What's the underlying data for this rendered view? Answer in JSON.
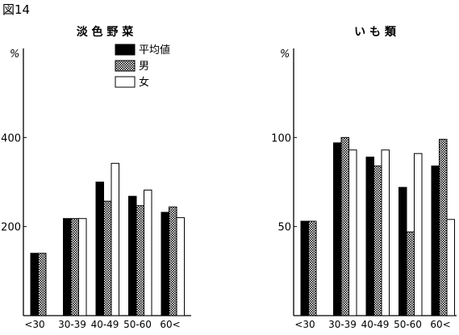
{
  "figure_label": "図14",
  "legend": {
    "entries": [
      "平均値",
      "男",
      "女"
    ]
  },
  "chart_data": [
    {
      "type": "bar",
      "title": "淡 色 野 菜",
      "unit_label": "%",
      "categories": [
        "<30",
        "30-39",
        "40-49",
        "50-60",
        "60<"
      ],
      "ylim": [
        0,
        600
      ],
      "yticks": [
        200,
        400
      ],
      "grid": false,
      "legend_position": "top-right",
      "series": [
        {
          "name": "平均値",
          "values": [
            140,
            218,
            300,
            268,
            232
          ]
        },
        {
          "name": "男",
          "values": [
            140,
            218,
            257,
            247,
            244
          ]
        },
        {
          "name": "女",
          "values": [
            null,
            218,
            342,
            282,
            220
          ]
        }
      ]
    },
    {
      "type": "bar",
      "title": "い も 類",
      "unit_label": "%",
      "categories": [
        "<30",
        "30-39",
        "40-49",
        "50-60",
        "60<"
      ],
      "ylim": [
        0,
        150
      ],
      "yticks": [
        50,
        100
      ],
      "grid": false,
      "series": [
        {
          "name": "平均値",
          "values": [
            53,
            97,
            89,
            72,
            84
          ]
        },
        {
          "name": "男",
          "values": [
            53,
            100,
            84,
            47,
            99
          ]
        },
        {
          "name": "女",
          "values": [
            null,
            93,
            93,
            91,
            54
          ]
        }
      ]
    }
  ],
  "colors": {
    "avg": "#000000",
    "male_fill": "#a8a8a8",
    "female": "#ffffff",
    "stroke": "#000000"
  }
}
